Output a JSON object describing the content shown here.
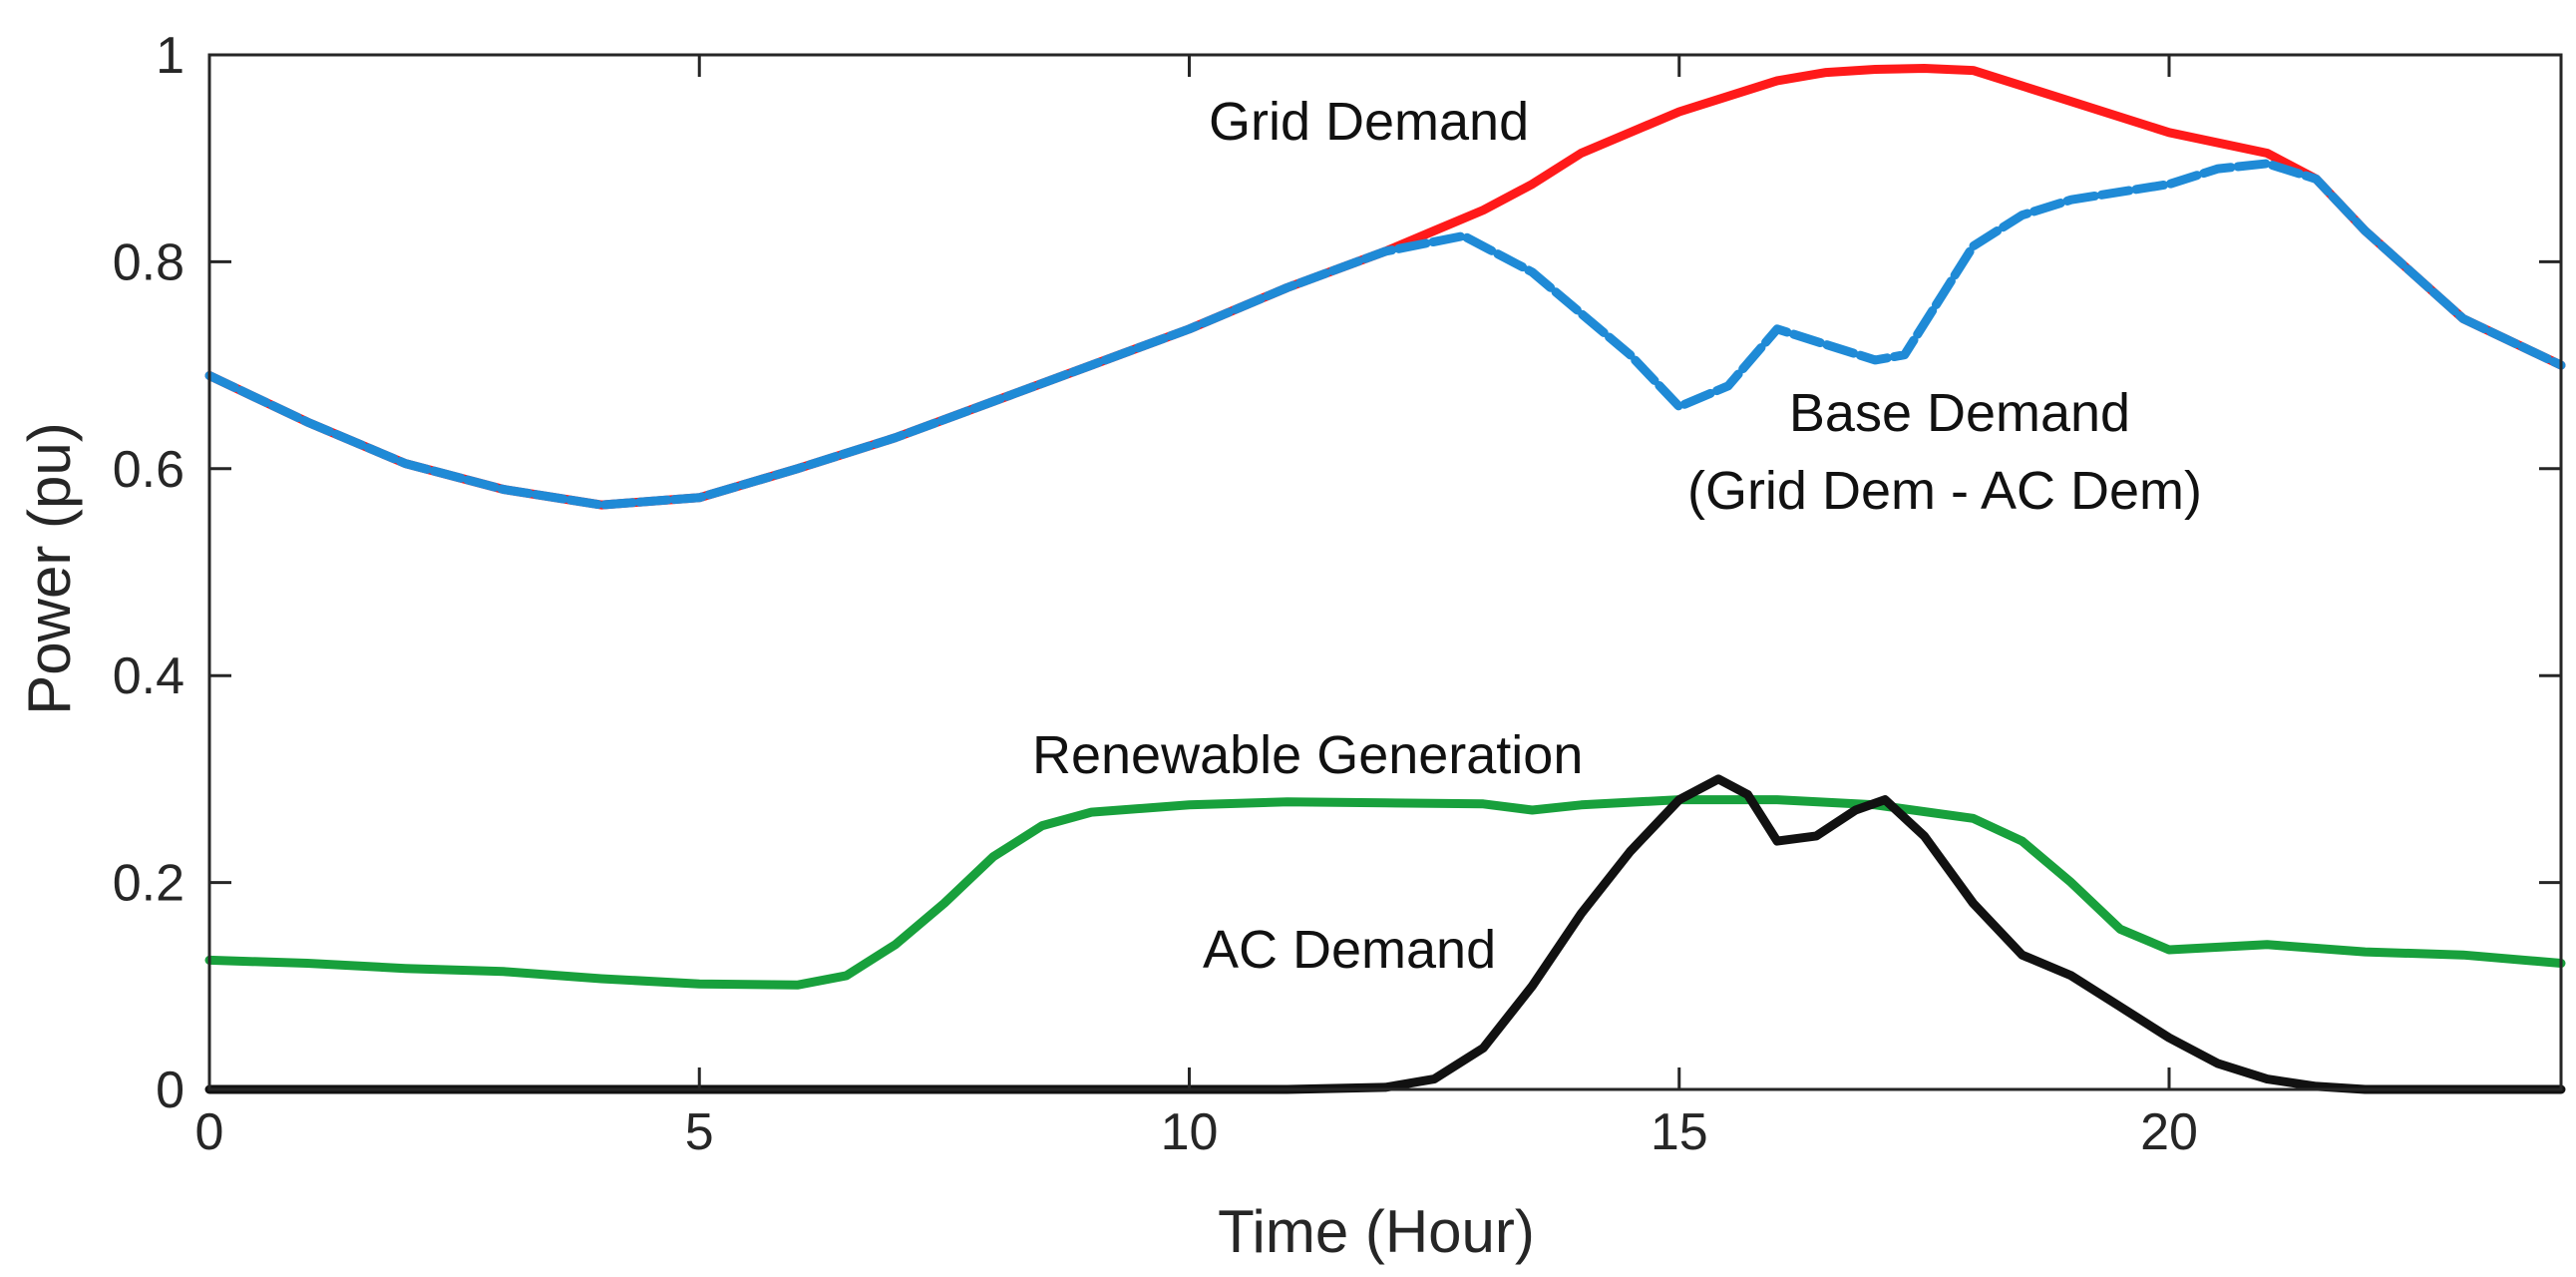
{
  "chart_data": {
    "type": "line",
    "title": "",
    "xlabel": "Time (Hour)",
    "ylabel": "Power (pu)",
    "xlim": [
      0,
      24
    ],
    "ylim": [
      0,
      1
    ],
    "xticks": [
      0,
      5,
      10,
      15,
      20
    ],
    "xtick_labels": [
      "0",
      "5",
      "10",
      "15",
      "20"
    ],
    "yticks": [
      0,
      0.2,
      0.4,
      0.6,
      0.8,
      1
    ],
    "ytick_labels": [
      "0",
      "0.2",
      "0.4",
      "0.6",
      "0.8",
      "1"
    ],
    "grid": false,
    "series": [
      {
        "name": "Grid Demand",
        "color": "#ff1a1a",
        "style": "solid",
        "x": [
          0,
          1,
          2,
          3,
          4,
          5,
          6,
          7,
          8,
          9,
          10,
          11,
          12,
          12.5,
          13,
          13.5,
          14,
          15,
          16,
          16.5,
          17,
          17.5,
          18,
          18.5,
          19,
          20,
          21,
          21.5,
          22,
          23,
          24
        ],
        "y": [
          0.69,
          0.645,
          0.605,
          0.58,
          0.565,
          0.572,
          0.6,
          0.63,
          0.665,
          0.7,
          0.735,
          0.775,
          0.81,
          0.83,
          0.85,
          0.875,
          0.905,
          0.945,
          0.975,
          0.983,
          0.986,
          0.987,
          0.985,
          0.97,
          0.955,
          0.925,
          0.905,
          0.88,
          0.83,
          0.745,
          0.7
        ]
      },
      {
        "name": "Base Demand",
        "color": "#1f8ad6",
        "style": "dashed",
        "x": [
          0,
          1,
          2,
          3,
          4,
          5,
          6,
          7,
          8,
          9,
          10,
          11,
          12,
          12.8,
          13.5,
          14,
          14.5,
          15,
          15.5,
          16,
          16.5,
          17,
          17.3,
          17.7,
          18,
          18.5,
          19,
          20,
          20.5,
          21,
          21.5,
          22,
          23,
          24
        ],
        "y": [
          0.69,
          0.645,
          0.605,
          0.58,
          0.565,
          0.572,
          0.6,
          0.63,
          0.665,
          0.7,
          0.735,
          0.775,
          0.81,
          0.825,
          0.79,
          0.75,
          0.71,
          0.66,
          0.68,
          0.735,
          0.72,
          0.705,
          0.71,
          0.77,
          0.815,
          0.845,
          0.86,
          0.875,
          0.89,
          0.895,
          0.88,
          0.83,
          0.745,
          0.7
        ]
      },
      {
        "name": "Renewable Generation",
        "color": "#18a03c",
        "style": "solid",
        "x": [
          0,
          1,
          2,
          3,
          4,
          5,
          6,
          6.5,
          7,
          7.5,
          8,
          8.5,
          9,
          10,
          11,
          12,
          13,
          13.5,
          14,
          15,
          16,
          17,
          18,
          18.5,
          19,
          19.5,
          20,
          21,
          22,
          23,
          24
        ],
        "y": [
          0.125,
          0.122,
          0.117,
          0.114,
          0.107,
          0.102,
          0.101,
          0.11,
          0.14,
          0.18,
          0.225,
          0.255,
          0.268,
          0.275,
          0.278,
          0.277,
          0.276,
          0.27,
          0.275,
          0.28,
          0.28,
          0.275,
          0.262,
          0.24,
          0.2,
          0.155,
          0.135,
          0.14,
          0.133,
          0.13,
          0.122
        ]
      },
      {
        "name": "AC Demand",
        "color": "#111111",
        "style": "solid",
        "x": [
          0,
          1,
          2,
          3,
          4,
          5,
          6,
          7,
          8,
          9,
          10,
          11,
          12,
          12.5,
          13,
          13.5,
          14,
          14.5,
          15,
          15.4,
          15.7,
          16,
          16.4,
          16.8,
          17.1,
          17.5,
          18,
          18.5,
          19,
          19.5,
          20,
          20.5,
          21,
          21.5,
          22,
          23,
          24
        ],
        "y": [
          0,
          0,
          0,
          0,
          0,
          0,
          0,
          0,
          0,
          0,
          0,
          0,
          0.002,
          0.01,
          0.04,
          0.1,
          0.17,
          0.23,
          0.28,
          0.3,
          0.285,
          0.24,
          0.245,
          0.27,
          0.28,
          0.245,
          0.18,
          0.13,
          0.11,
          0.08,
          0.05,
          0.025,
          0.01,
          0.003,
          0,
          0,
          0
        ]
      }
    ],
    "annotations": {
      "grid_demand": "Grid Demand",
      "base_demand_line1": "Base Demand",
      "base_demand_line2": "(Grid Dem - AC Dem)",
      "renewable": "Renewable Generation",
      "ac_demand": "AC Demand"
    }
  }
}
